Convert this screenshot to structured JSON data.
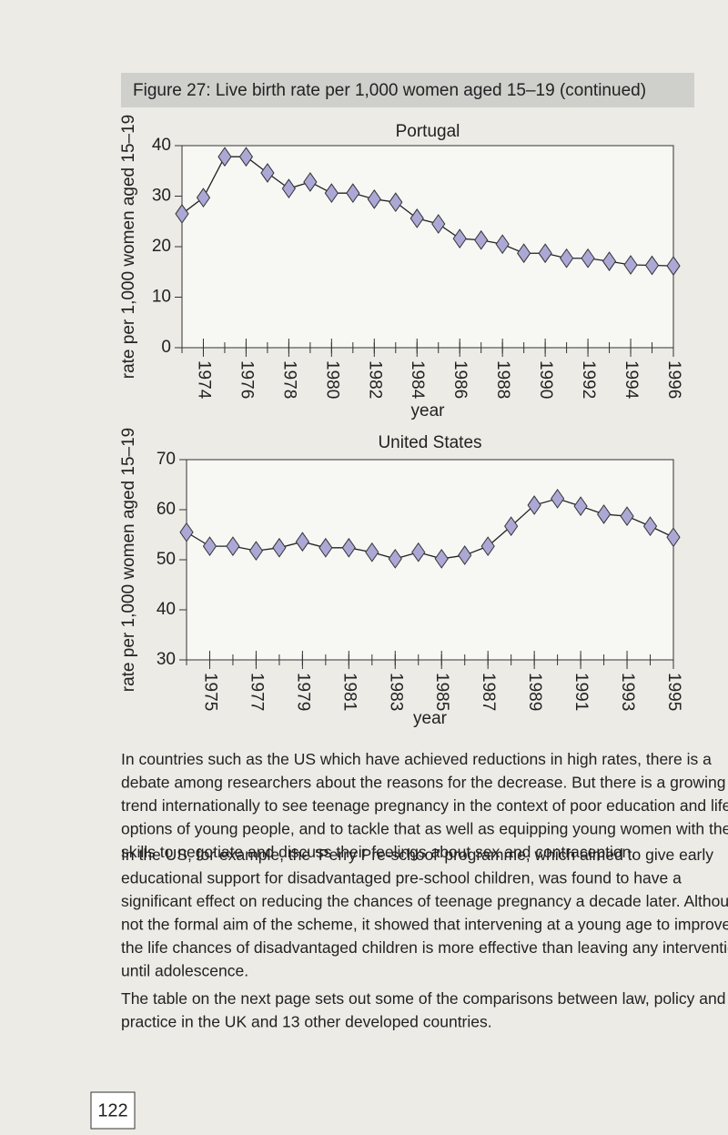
{
  "figure_title": "Figure 27: Live birth rate per 1,000 women aged 15–19 (continued)",
  "chart_data": [
    {
      "type": "line",
      "title": "Portugal",
      "x_label": "year",
      "y_label": "rate per 1,000 women aged 15–19",
      "x": [
        1973,
        1974,
        1975,
        1976,
        1977,
        1978,
        1979,
        1980,
        1981,
        1982,
        1983,
        1984,
        1985,
        1986,
        1987,
        1988,
        1989,
        1990,
        1991,
        1992,
        1993,
        1994,
        1995,
        1996
      ],
      "series": [
        {
          "color": "#aca8d6",
          "values": [
            26.5,
            29.7,
            37.8,
            37.8,
            34.6,
            31.5,
            32.8,
            30.6,
            30.6,
            29.4,
            28.8,
            25.6,
            24.5,
            21.6,
            21.3,
            20.5,
            18.7,
            18.7,
            17.7,
            17.7,
            17.1,
            16.4,
            16.3,
            16.2
          ]
        }
      ],
      "xlim": [
        1973,
        1996
      ],
      "xticks": [
        1974,
        1976,
        1978,
        1980,
        1982,
        1984,
        1986,
        1988,
        1990,
        1992,
        1994,
        1996
      ],
      "ylim": [
        0,
        40
      ],
      "yticks": [
        0,
        10,
        20,
        30,
        40
      ]
    },
    {
      "type": "line",
      "title": "United States",
      "x_label": "year",
      "y_label": "rate per 1,000 women aged 15–19",
      "x": [
        1974,
        1975,
        1976,
        1977,
        1978,
        1979,
        1980,
        1981,
        1982,
        1983,
        1984,
        1985,
        1986,
        1987,
        1988,
        1989,
        1990,
        1991,
        1992,
        1993,
        1994,
        1995
      ],
      "series": [
        {
          "color": "#aca8d6",
          "values": [
            55.5,
            52.7,
            52.7,
            51.8,
            52.4,
            53.6,
            52.4,
            52.4,
            51.5,
            50.2,
            51.5,
            50.2,
            50.9,
            52.7,
            56.7,
            60.9,
            62.2,
            60.7,
            59.1,
            58.7,
            56.7,
            54.5
          ]
        }
      ],
      "xlim": [
        1974,
        1995
      ],
      "xticks": [
        1975,
        1977,
        1979,
        1981,
        1983,
        1985,
        1987,
        1989,
        1991,
        1993,
        1995
      ],
      "ylim": [
        30,
        70
      ],
      "yticks": [
        30,
        40,
        50,
        60,
        70
      ]
    }
  ],
  "paragraphs": [
    {
      "lines": [
        "In countries such as the US which have achieved reductions in high rates, there is a",
        "debate among researchers about the reasons for the decrease. But there is a growing",
        "trend internationally to see teenage pregnancy in the context of poor education and life",
        "options of young people, and to tackle that as well as equipping young women with the",
        "skills to negotiate and discuss their feelings about sex and contraception."
      ]
    },
    {
      "lines": [
        "In the US, for example, the ‘Perry Pre-school’ programme, which aimed to give early",
        "educational support for disadvantaged pre-school children, was found to have a",
        "significant effect on reducing the chances of teenage pregnancy a decade later. Although",
        "not the formal aim of the scheme, it showed that intervening at a young age to improve",
        "the life chances of disadvantaged children is more effective than leaving any intervention",
        "until adolescence."
      ]
    },
    {
      "lines": [
        "The table on the next page sets out some of the comparisons between law, policy and",
        "practice in the UK and 13 other developed countries."
      ]
    }
  ],
  "page_number": "122"
}
